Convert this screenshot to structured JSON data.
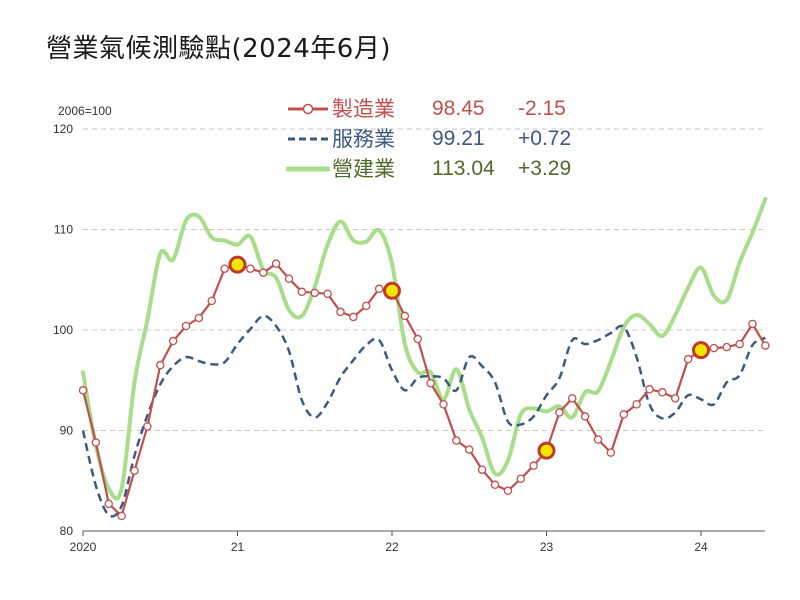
{
  "title": "營業氣候測驗點(2024年6月)",
  "base_label": "2006=100",
  "colors": {
    "manufacturing": "#c0504d",
    "services": "#3d5a80",
    "construction": "#a8dd8a",
    "construction_text": "#4f6b2a",
    "marker_fill": "#f2e600",
    "grid": "#c8c8c8",
    "axis": "#555555"
  },
  "legend": [
    {
      "name": "製造業",
      "value": "98.45",
      "change": "-2.15"
    },
    {
      "name": "服務業",
      "value": "99.21",
      "change": "+0.72"
    },
    {
      "name": "營建業",
      "value": "113.04",
      "change": "+3.29"
    }
  ],
  "chart_data": {
    "type": "line",
    "title": "營業氣候測驗點(2024年6月)",
    "ylabel": "2006=100",
    "ylim": [
      80,
      120
    ],
    "yticks": [
      "80",
      "90",
      "100",
      "110",
      "120"
    ],
    "x_tick_labels": [
      "2020",
      "21",
      "22",
      "23",
      "24"
    ],
    "x_start": "2020-01",
    "grid": "horizontal dashed",
    "legend_placement": "top-center",
    "series": [
      {
        "name": "製造業",
        "style": "line-with-circle-markers",
        "values": [
          94.0,
          88.8,
          82.7,
          81.5,
          86.0,
          90.4,
          96.5,
          98.9,
          100.4,
          101.2,
          102.9,
          106.1,
          106.5,
          106.1,
          105.7,
          106.6,
          105.1,
          103.8,
          103.7,
          103.6,
          101.8,
          101.3,
          102.4,
          104.1,
          103.9,
          101.4,
          99.1,
          94.7,
          92.6,
          89.0,
          88.1,
          86.1,
          84.6,
          84.0,
          85.2,
          86.5,
          88.0,
          91.8,
          93.2,
          91.4,
          89.1,
          87.8,
          91.6,
          92.6,
          94.1,
          93.8,
          93.2,
          97.1,
          98.0,
          98.2,
          98.3,
          98.6,
          100.6,
          98.45
        ],
        "highlighted_points": [
          {
            "month": "2021-01",
            "value": 106.5
          },
          {
            "month": "2022-01",
            "value": 103.9
          },
          {
            "month": "2023-01",
            "value": 88.0
          },
          {
            "month": "2024-01",
            "value": 98.0
          }
        ]
      },
      {
        "name": "服務業",
        "style": "dashed",
        "values": [
          90.0,
          84.5,
          81.6,
          82.5,
          87.5,
          91.5,
          94.6,
          96.4,
          97.3,
          96.9,
          96.6,
          96.8,
          98.6,
          100.1,
          101.4,
          100.4,
          97.9,
          93.0,
          91.3,
          92.8,
          95.3,
          97.0,
          98.5,
          99.0,
          96.0,
          94.0,
          95.2,
          95.4,
          95.2,
          94.0,
          97.3,
          96.4,
          94.8,
          90.9,
          90.6,
          91.4,
          93.5,
          95.2,
          99.0,
          98.6,
          99.0,
          99.7,
          100.3,
          97.3,
          92.6,
          91.2,
          91.8,
          93.5,
          93.1,
          92.6,
          94.8,
          95.5,
          98.5,
          99.21
        ]
      },
      {
        "name": "營建業",
        "style": "thick-line",
        "values": [
          95.8,
          88.5,
          84.2,
          84.2,
          94.8,
          101.0,
          107.6,
          107.0,
          110.9,
          111.3,
          109.2,
          108.9,
          108.5,
          109.3,
          106.0,
          105.2,
          102.0,
          101.4,
          104.3,
          108.5,
          110.8,
          108.9,
          108.8,
          109.9,
          106.6,
          98.6,
          95.8,
          95.8,
          93.1,
          96.1,
          92.1,
          89.3,
          85.7,
          87.0,
          91.6,
          92.2,
          91.9,
          92.4,
          91.3,
          93.8,
          93.9,
          96.9,
          100.3,
          101.5,
          100.6,
          99.4,
          101.5,
          104.2,
          106.2,
          103.4,
          103.0,
          106.7,
          109.7,
          113.04
        ]
      }
    ]
  }
}
